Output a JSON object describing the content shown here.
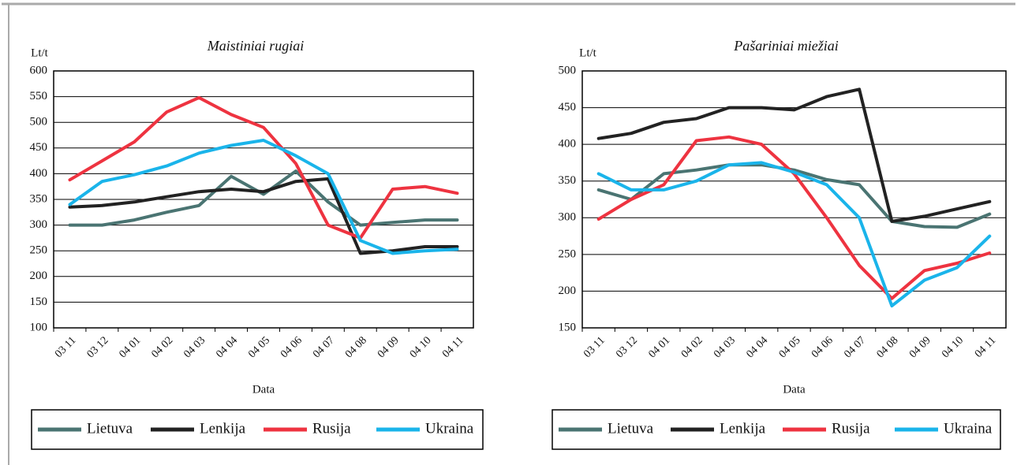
{
  "chart_data": [
    {
      "type": "line",
      "title": "Maistiniai rugiai",
      "ylabel": "Lt/t",
      "xlabel": "Data",
      "categories": [
        "03 11",
        "03 12",
        "04 01",
        "04 02",
        "04 03",
        "04 04",
        "04 05",
        "04 06",
        "04 07",
        "04 08",
        "04 09",
        "04 10",
        "04 11"
      ],
      "ylim": [
        100,
        600
      ],
      "yticks": [
        100,
        150,
        200,
        250,
        300,
        350,
        400,
        450,
        500,
        550,
        600
      ],
      "grid": true,
      "series": [
        {
          "name": "Lietuva",
          "color": "#4a7472",
          "values": [
            300,
            300,
            310,
            325,
            338,
            395,
            360,
            405,
            345,
            300,
            305,
            310,
            310
          ]
        },
        {
          "name": "Lenkija",
          "color": "#222222",
          "values": [
            335,
            338,
            345,
            355,
            365,
            370,
            365,
            385,
            390,
            245,
            250,
            258,
            258
          ]
        },
        {
          "name": "Rusija",
          "color": "#ee3340",
          "values": [
            388,
            425,
            462,
            520,
            548,
            515,
            490,
            420,
            300,
            275,
            370,
            375,
            362
          ]
        },
        {
          "name": "Ukraina",
          "color": "#1ab4ea",
          "values": [
            340,
            385,
            398,
            415,
            440,
            455,
            465,
            435,
            400,
            270,
            245,
            250,
            253
          ]
        }
      ]
    },
    {
      "type": "line",
      "title": "Pašariniai miežiai",
      "ylabel": "Lt/t",
      "xlabel": "Data",
      "categories": [
        "03 11",
        "03 12",
        "04 01",
        "04 02",
        "04 03",
        "04 04",
        "04 05",
        "04 06",
        "04 07",
        "04 08",
        "04 09",
        "04 10",
        "04 11"
      ],
      "ylim": [
        150,
        500
      ],
      "yticks": [
        150,
        200,
        250,
        300,
        350,
        400,
        450,
        500
      ],
      "grid": true,
      "series": [
        {
          "name": "Lietuva",
          "color": "#4a7472",
          "values": [
            338,
            325,
            360,
            365,
            372,
            372,
            365,
            352,
            345,
            295,
            288,
            287,
            305
          ]
        },
        {
          "name": "Lenkija",
          "color": "#222222",
          "values": [
            408,
            415,
            430,
            435,
            450,
            450,
            447,
            465,
            475,
            295,
            302,
            312,
            322
          ]
        },
        {
          "name": "Rusija",
          "color": "#ee3340",
          "values": [
            298,
            325,
            345,
            405,
            410,
            400,
            360,
            300,
            235,
            190,
            228,
            238,
            252
          ]
        },
        {
          "name": "Ukraina",
          "color": "#1ab4ea",
          "values": [
            360,
            338,
            338,
            350,
            372,
            375,
            362,
            345,
            300,
            180,
            215,
            232,
            275
          ]
        }
      ]
    }
  ]
}
